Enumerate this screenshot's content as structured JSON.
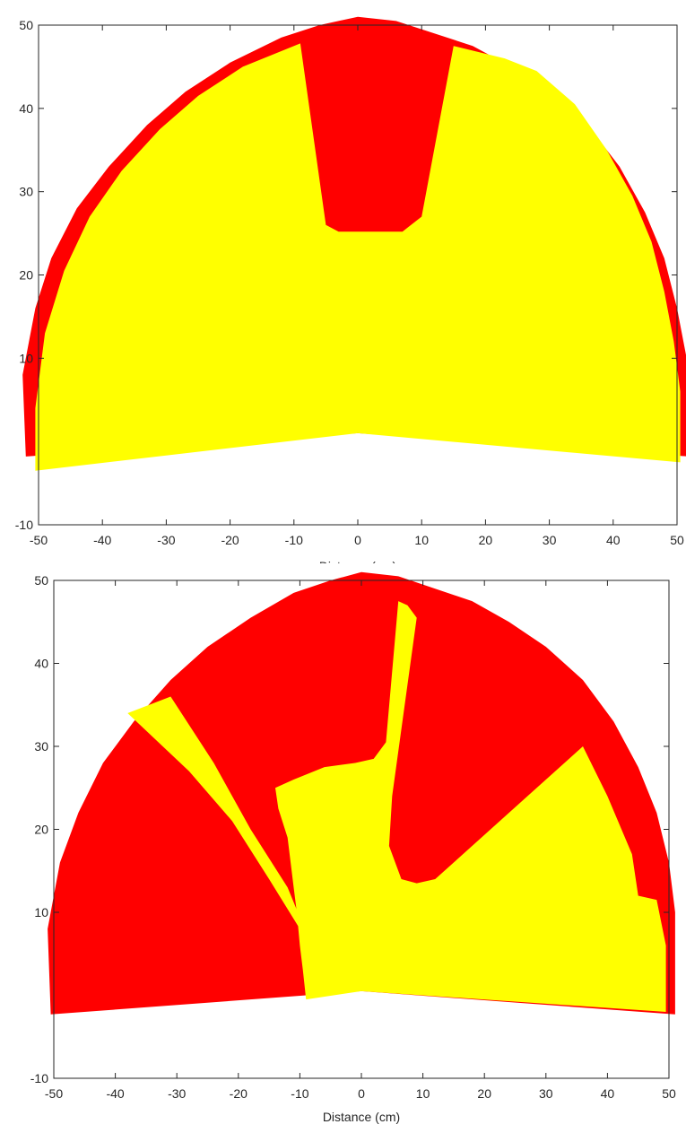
{
  "colors": {
    "occupied": "#ff0000",
    "free": "#ffff00",
    "axis": "#262626",
    "background": "#ffffff"
  },
  "chart_data": [
    {
      "type": "area",
      "xlabel": "Distance (cm)",
      "ylabel": "",
      "xlim": [
        -50,
        50
      ],
      "ylim": [
        -10,
        50
      ],
      "xticks": [
        "-50",
        "-40",
        "-30",
        "-20",
        "-10",
        "0",
        "10",
        "20",
        "30",
        "40",
        "50"
      ],
      "yticks": [
        "-10",
        "10",
        "20",
        "30",
        "40",
        "50"
      ],
      "regions": {
        "scan_boundary": [
          [
            -52,
            -1.8
          ],
          [
            -52.5,
            8
          ],
          [
            -50.5,
            16
          ],
          [
            -48,
            22
          ],
          [
            -44,
            28
          ],
          [
            -39,
            33
          ],
          [
            -33,
            38
          ],
          [
            -27,
            42
          ],
          [
            -20,
            45.5
          ],
          [
            -12,
            48.5
          ],
          [
            -6,
            50
          ],
          [
            0,
            51
          ],
          [
            6,
            50.5
          ],
          [
            12,
            49
          ],
          [
            18,
            47.5
          ],
          [
            24,
            45
          ],
          [
            30,
            42
          ],
          [
            36,
            38
          ],
          [
            41,
            33
          ],
          [
            45,
            27.5
          ],
          [
            48,
            22
          ],
          [
            50,
            16
          ],
          [
            51.5,
            10
          ],
          [
            52,
            3
          ],
          [
            52,
            -1.8
          ],
          [
            0,
            1
          ]
        ],
        "free_area": [
          [
            -50.5,
            -3.5
          ],
          [
            -50.5,
            4
          ],
          [
            -49,
            13
          ],
          [
            -46,
            20.5
          ],
          [
            -42,
            27
          ],
          [
            -37,
            32.5
          ],
          [
            -31,
            37.5
          ],
          [
            -25,
            41.5
          ],
          [
            -18,
            45
          ],
          [
            -9,
            47.8
          ],
          [
            -5,
            26
          ],
          [
            -3,
            25.2
          ],
          [
            7,
            25.2
          ],
          [
            10,
            27
          ],
          [
            15,
            47.5
          ],
          [
            23,
            46
          ],
          [
            28,
            44.5
          ],
          [
            34,
            40.5
          ],
          [
            39,
            35
          ],
          [
            43,
            29.5
          ],
          [
            46,
            24
          ],
          [
            48,
            18
          ],
          [
            49.5,
            12
          ],
          [
            50.5,
            6
          ],
          [
            50.5,
            -2.5
          ],
          [
            0,
            1
          ]
        ],
        "free_cutouts": []
      }
    },
    {
      "type": "area",
      "xlabel": "Distance (cm)",
      "ylabel": "",
      "xlim": [
        -50,
        50
      ],
      "ylim": [
        -10,
        50
      ],
      "xticks": [
        "-50",
        "-40",
        "-30",
        "-20",
        "-10",
        "0",
        "10",
        "20",
        "30",
        "40",
        "50"
      ],
      "yticks": [
        "-10",
        "10",
        "20",
        "30",
        "40",
        "50"
      ],
      "regions": {
        "scan_boundary": [
          [
            -50.5,
            -2.3
          ],
          [
            -51,
            8
          ],
          [
            -49,
            16
          ],
          [
            -46,
            22
          ],
          [
            -42,
            28
          ],
          [
            -37,
            33
          ],
          [
            -31,
            38
          ],
          [
            -25,
            42
          ],
          [
            -18,
            45.5
          ],
          [
            -11,
            48.5
          ],
          [
            -5,
            50
          ],
          [
            0,
            51
          ],
          [
            6,
            50.5
          ],
          [
            12,
            49
          ],
          [
            18,
            47.5
          ],
          [
            24,
            45
          ],
          [
            30,
            42
          ],
          [
            36,
            38
          ],
          [
            41,
            33
          ],
          [
            45,
            27.5
          ],
          [
            48,
            22
          ],
          [
            50,
            16
          ],
          [
            51,
            10
          ],
          [
            51,
            3
          ],
          [
            51,
            -2.3
          ],
          [
            0,
            0.5
          ]
        ],
        "free_area": [
          [
            -9,
            -0.5
          ],
          [
            -9.5,
            3
          ],
          [
            -10,
            6
          ],
          [
            -10.5,
            10
          ],
          [
            -11,
            13
          ],
          [
            -11.5,
            16
          ],
          [
            -12,
            19
          ],
          [
            -13.5,
            22.5
          ],
          [
            -14,
            25
          ],
          [
            -11,
            26
          ],
          [
            -6,
            27.5
          ],
          [
            -1,
            28
          ],
          [
            2,
            28.5
          ],
          [
            4,
            30.5
          ],
          [
            6,
            47.5
          ],
          [
            7.5,
            47
          ],
          [
            9,
            45.5
          ],
          [
            5,
            24
          ],
          [
            4.5,
            18
          ],
          [
            6.5,
            14
          ],
          [
            9,
            13.5
          ],
          [
            12,
            14
          ],
          [
            36,
            30
          ],
          [
            40,
            24
          ],
          [
            44,
            17
          ],
          [
            45,
            12
          ],
          [
            48,
            11.5
          ],
          [
            49.5,
            6
          ],
          [
            49.5,
            -2
          ],
          [
            0,
            0.5
          ]
        ],
        "free_cutouts": [
          [
            [
              -38,
              34
            ],
            [
              -31,
              36
            ],
            [
              -24,
              28
            ],
            [
              -18,
              20
            ],
            [
              -12,
              13
            ],
            [
              -7,
              4
            ],
            [
              -10,
              8
            ],
            [
              -15,
              14
            ],
            [
              -21,
              21
            ],
            [
              -28,
              27
            ]
          ]
        ]
      }
    }
  ]
}
